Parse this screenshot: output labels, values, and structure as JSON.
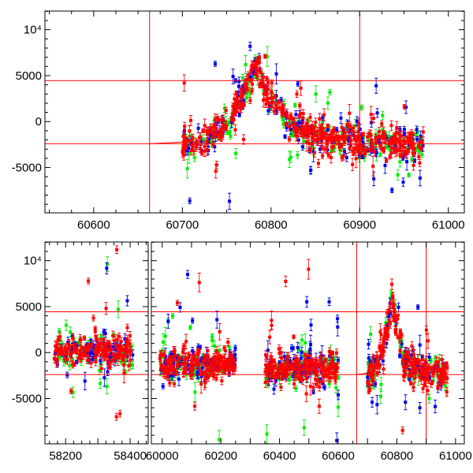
{
  "chart_data": [
    {
      "type": "scatter",
      "title": "",
      "xlabel": "",
      "ylabel": "",
      "grid": false,
      "xlim": [
        60545,
        61018
      ],
      "ylim": [
        -9930,
        12030
      ],
      "xticks": [
        60600,
        60700,
        60800,
        60900,
        61000
      ],
      "xtick_labels": [
        "60600",
        "60700",
        "60800",
        "60900",
        "61000"
      ],
      "yticks": [
        10000,
        5000,
        0,
        -5000
      ],
      "ytick_labels": [
        "10⁴",
        "5000",
        "0",
        "-5000"
      ],
      "hlines": [
        4460,
        -2400
      ],
      "vlines": [
        60663,
        60900
      ],
      "segments": [
        [
          60700,
          60972
        ]
      ],
      "series": [
        {
          "name": "green",
          "color": "#00ee00",
          "n": 180
        },
        {
          "name": "blue",
          "color": "#0000ee",
          "n": 180
        },
        {
          "name": "red",
          "color": "#ff0000",
          "n": 420
        }
      ],
      "trend": {
        "x": [
          60705,
          60725,
          60735,
          60750,
          60760,
          60770,
          60780,
          60785,
          60790,
          60800,
          60810,
          60820,
          60840,
          60860,
          60880,
          60900,
          60930,
          60972
        ],
        "y": [
          -2200,
          -2200,
          -1000,
          -500,
          1500,
          3000,
          5500,
          6000,
          4000,
          2500,
          1500,
          -500,
          -1000,
          -1500,
          -2000,
          -2200,
          -2000,
          -2500
        ]
      },
      "model_curve": {
        "x": [
          60663,
          60720
        ],
        "y": [
          -2400,
          -2150
        ]
      }
    },
    {
      "type": "scatter",
      "title": "",
      "xlabel": "",
      "ylabel": "",
      "grid": false,
      "broken_xaxis": [
        [
          58136,
          58456
        ],
        [
          59963,
          61030
        ]
      ],
      "ylim": [
        -9930,
        12030
      ],
      "xticks": [
        58200,
        58400,
        60000,
        60200,
        60400,
        60600,
        60800,
        61000
      ],
      "xtick_labels": [
        "58200",
        "58400",
        "60000",
        "60200",
        "60400",
        "60600",
        "60800",
        "61000"
      ],
      "yticks": [
        10000,
        5000,
        0,
        -5000
      ],
      "ytick_labels": [
        "10⁴",
        "5000",
        "0",
        "-5000"
      ],
      "hlines": [
        4440,
        -2390
      ],
      "vlines": [
        60663,
        60900
      ],
      "segments": [
        [
          58165,
          58410
        ],
        [
          59990,
          60250
        ],
        [
          60350,
          60600
        ],
        [
          60700,
          60972
        ]
      ],
      "series": [
        {
          "name": "green",
          "color": "#00ee00",
          "n": 300
        },
        {
          "name": "blue",
          "color": "#0000ee",
          "n": 300
        },
        {
          "name": "red",
          "color": "#ff0000",
          "n": 700
        }
      ],
      "trend": {
        "x": [
          58165,
          58410,
          59990,
          60250,
          60350,
          60600,
          60705,
          60725,
          60735,
          60750,
          60760,
          60770,
          60780,
          60785,
          60790,
          60800,
          60810,
          60820,
          60840,
          60860,
          60880,
          60900,
          60930,
          60972
        ],
        "y": [
          300,
          0,
          -1200,
          -1200,
          -1700,
          -1700,
          -2200,
          -2200,
          -1000,
          -500,
          1500,
          3000,
          5500,
          6000,
          4000,
          2500,
          1500,
          -500,
          -1000,
          -1500,
          -2000,
          -2200,
          -2000,
          -2500
        ]
      },
      "model_curve": {
        "x": [
          60663,
          60720
        ],
        "y": [
          -2390,
          -2150
        ]
      }
    }
  ]
}
